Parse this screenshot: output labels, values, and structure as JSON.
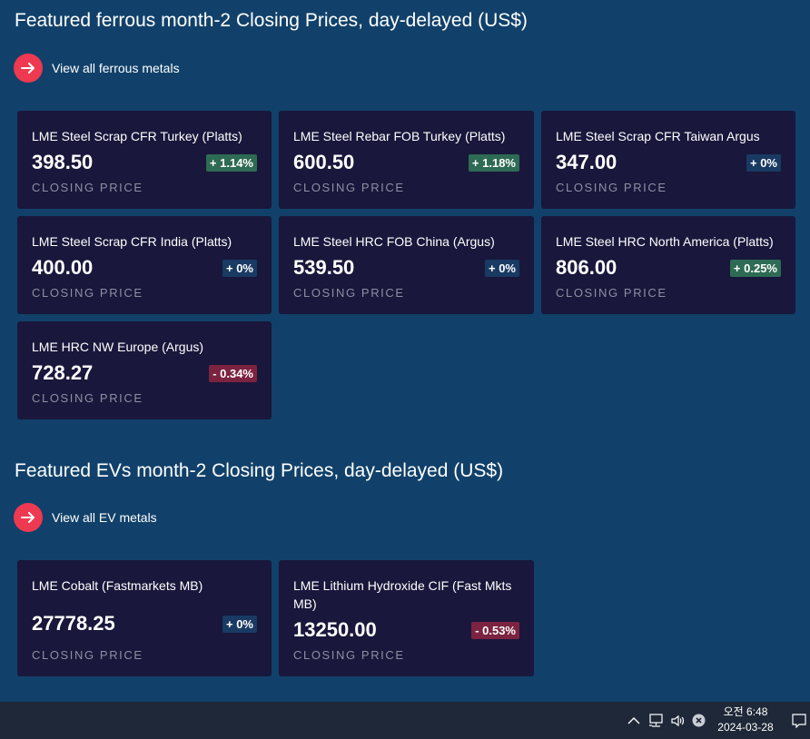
{
  "ferrous": {
    "title": "Featured ferrous month-2 Closing Prices, day-delayed (US$)",
    "link_label": "View all ferrous metals",
    "cards": [
      {
        "name": "LME Steel Scrap CFR Turkey (Platts)",
        "price": "398.50",
        "change": "+ 1.14%",
        "direction": "up",
        "caption": "CLOSING PRICE"
      },
      {
        "name": "LME Steel Rebar FOB Turkey (Platts)",
        "price": "600.50",
        "change": "+ 1.18%",
        "direction": "up",
        "caption": "CLOSING PRICE"
      },
      {
        "name": "LME Steel Scrap CFR Taiwan Argus",
        "price": "347.00",
        "change": "+ 0%",
        "direction": "flat",
        "caption": "CLOSING PRICE"
      },
      {
        "name": "LME Steel Scrap CFR India (Platts)",
        "price": "400.00",
        "change": "+ 0%",
        "direction": "flat",
        "caption": "CLOSING PRICE"
      },
      {
        "name": "LME Steel HRC FOB China (Argus)",
        "price": "539.50",
        "change": "+ 0%",
        "direction": "flat",
        "caption": "CLOSING PRICE"
      },
      {
        "name": "LME Steel HRC North America (Platts)",
        "price": "806.00",
        "change": "+ 0.25%",
        "direction": "up",
        "caption": "CLOSING PRICE"
      },
      {
        "name": "LME HRC NW Europe (Argus)",
        "price": "728.27",
        "change": "- 0.34%",
        "direction": "down",
        "caption": "CLOSING PRICE"
      }
    ]
  },
  "evs": {
    "title": "Featured EVs month-2 Closing Prices, day-delayed (US$)",
    "link_label": "View all EV metals",
    "cards": [
      {
        "name": "LME Cobalt (Fastmarkets MB)",
        "price": "27778.25",
        "change": "+ 0%",
        "direction": "flat",
        "caption": "CLOSING PRICE"
      },
      {
        "name": "LME Lithium Hydroxide CIF (Fast Mkts MB)",
        "price": "13250.00",
        "change": "- 0.53%",
        "direction": "down",
        "caption": "CLOSING PRICE"
      }
    ]
  },
  "taskbar": {
    "time": "오전 6:48",
    "date": "2024-03-28",
    "icons": [
      "chevron-up-icon",
      "network-icon",
      "volume-icon",
      "close-circle-icon",
      "notification-icon"
    ]
  },
  "colors": {
    "background": "#11416a",
    "card": "#19173b",
    "accent": "#ee3950",
    "up": "#2e6b54",
    "flat": "#193a63",
    "down": "#7b2340"
  }
}
